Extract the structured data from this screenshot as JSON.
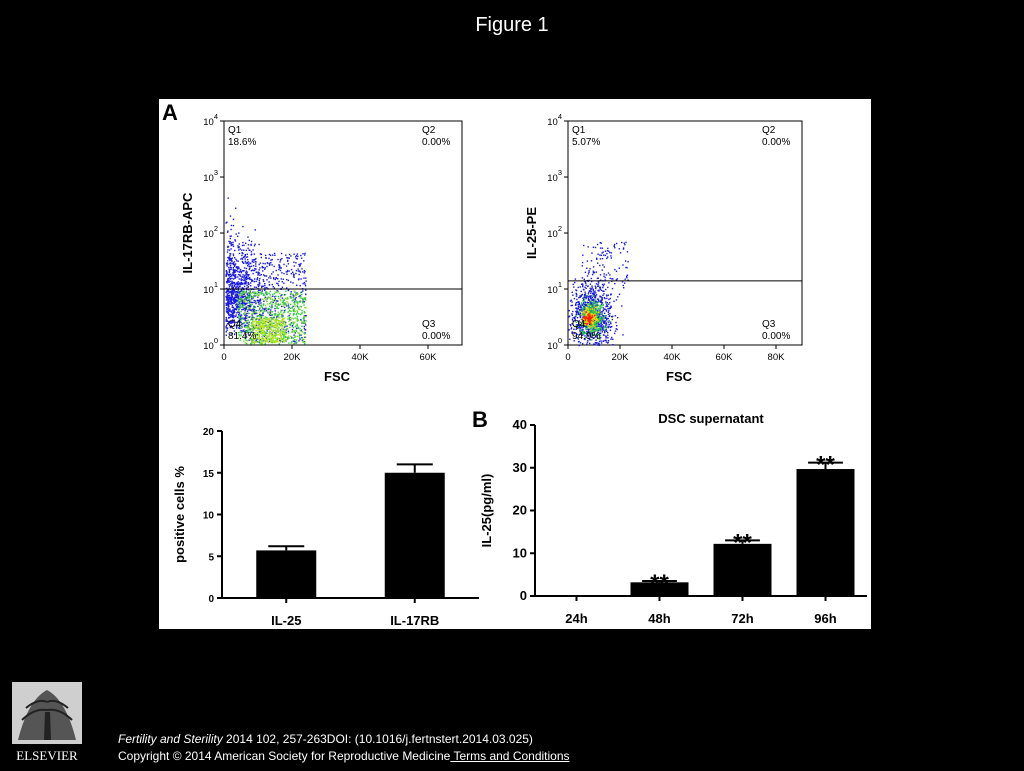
{
  "slide_title": "Figure 1",
  "panel_labels": {
    "a": "A",
    "b": "B"
  },
  "footer": {
    "journal": "Fertility and Sterility",
    "citation": "2014 102, 257-263DOI: (10.1016/j.fertnstert.2014.03.025)",
    "copyright": "Copyright © 2014 American Society for Reproductive Medicine",
    "terms_link": " Terms and Conditions"
  },
  "logo_text": "ELSEVIER",
  "colors": {
    "background": "#000000",
    "figure_background": "#ffffff",
    "bars": "#000000",
    "dots_low": "#1a1ae6",
    "dots_high": "#ff2000"
  },
  "chart_data": [
    {
      "type": "scatter",
      "title": "",
      "xlabel": "FSC",
      "ylabel": "IL-17RB-APC",
      "x_ticks": [
        "0",
        "20K",
        "40K",
        "60K"
      ],
      "y_ticks": [
        "10^0",
        "10^1",
        "10^2",
        "10^3",
        "10^4"
      ],
      "xlim": [
        0,
        70000
      ],
      "ylim": [
        1,
        10000
      ],
      "y_scale": "log",
      "gate_line_y": 10,
      "quadrants": [
        {
          "name": "Q1",
          "percent": "18.6%"
        },
        {
          "name": "Q2",
          "percent": "0.00%"
        },
        {
          "name": "Q3",
          "percent": "0.00%"
        },
        {
          "name": "Q4",
          "percent": "81.4%"
        }
      ]
    },
    {
      "type": "scatter",
      "title": "",
      "xlabel": "FSC",
      "ylabel": "IL-25-PE",
      "x_ticks": [
        "0",
        "20K",
        "40K",
        "60K",
        "80K"
      ],
      "y_ticks": [
        "10^0",
        "10^1",
        "10^2",
        "10^3",
        "10^4"
      ],
      "xlim": [
        0,
        90000
      ],
      "ylim": [
        1,
        10000
      ],
      "y_scale": "log",
      "gate_line_y": 14,
      "quadrants": [
        {
          "name": "Q1",
          "percent": "5.07%"
        },
        {
          "name": "Q2",
          "percent": "0.00%"
        },
        {
          "name": "Q3",
          "percent": "0.00%"
        },
        {
          "name": "Q4",
          "percent": "94.9%"
        }
      ]
    },
    {
      "type": "bar",
      "title": "",
      "xlabel": "",
      "ylabel": "positive cells %",
      "categories": [
        "IL-25",
        "IL-17RB"
      ],
      "values": [
        5.7,
        15.0
      ],
      "errors": [
        0.5,
        1.0
      ],
      "ylim": [
        0,
        20
      ],
      "y_ticks": [
        0,
        5,
        10,
        15,
        20
      ],
      "grid": false
    },
    {
      "type": "bar",
      "title": "DSC supernatant",
      "xlabel": "",
      "ylabel": "IL-25(pg/ml)",
      "categories": [
        "24h",
        "48h",
        "72h",
        "96h"
      ],
      "values": [
        0,
        3.2,
        12.2,
        29.7
      ],
      "errors": [
        0,
        0.3,
        0.8,
        1.5
      ],
      "significance": [
        "",
        "**",
        "**",
        "**"
      ],
      "ylim": [
        0,
        40
      ],
      "y_ticks": [
        0,
        10,
        20,
        30,
        40
      ],
      "grid": false
    }
  ]
}
